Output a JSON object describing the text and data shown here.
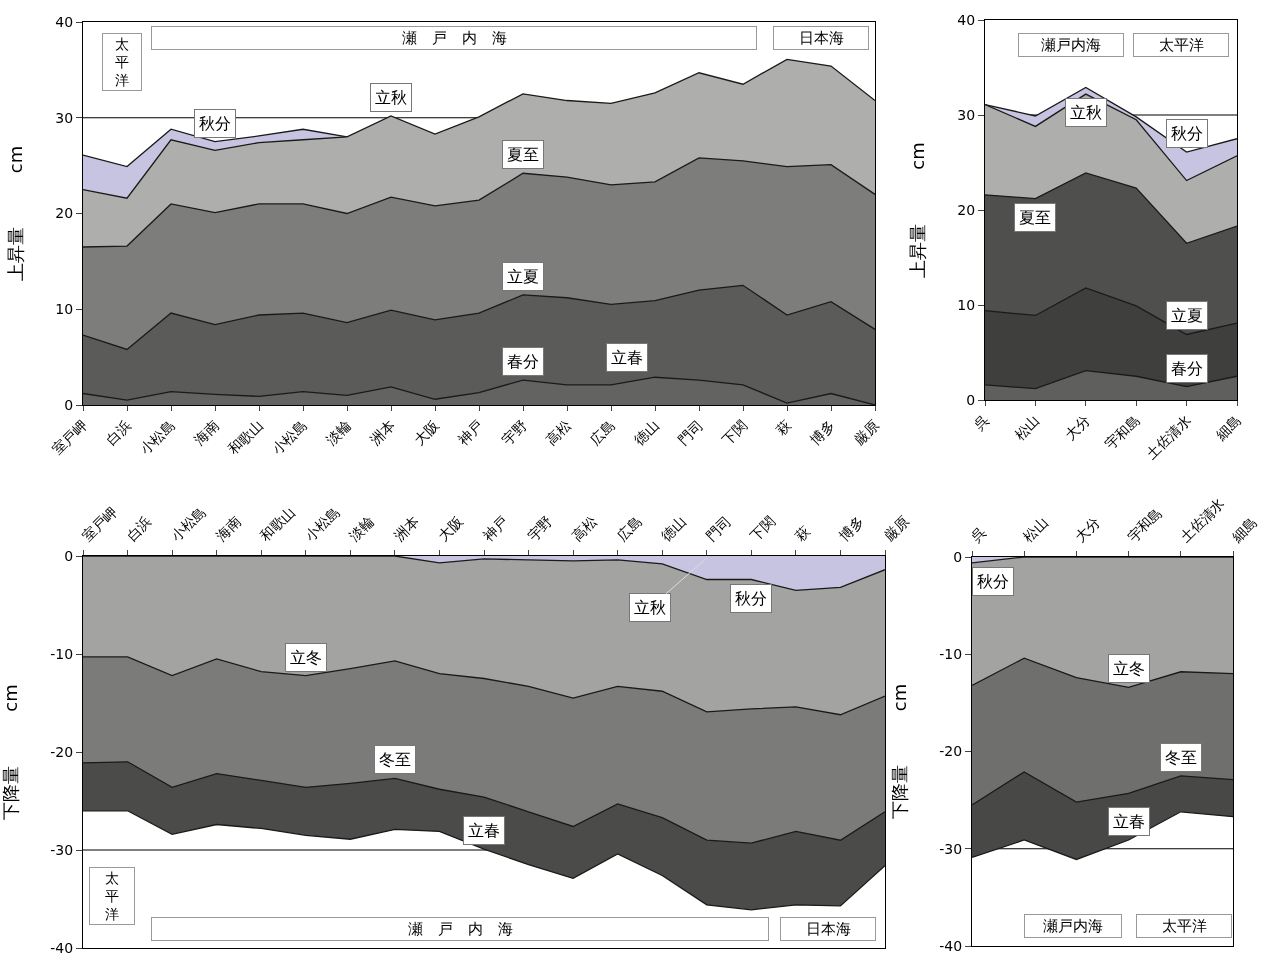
{
  "chart_data": [
    {
      "type": "area",
      "ylabel": "上昇量　　　cm",
      "ylim": [
        0,
        40
      ],
      "yticks": [
        0,
        10,
        20,
        30,
        40
      ],
      "categories": [
        "室戸岬",
        "白浜",
        "小松島",
        "海南",
        "和歌山",
        "小松島",
        "淡輪",
        "洲本",
        "大阪",
        "神戸",
        "宇野",
        "高松",
        "広島",
        "徳山",
        "門司",
        "下関",
        "萩",
        "博多",
        "厳原"
      ],
      "series": [
        {
          "name": "秋分",
          "color": "#c6c4e0",
          "values": [
            26.1,
            24.9,
            28.8,
            27.5,
            28.1,
            28.8,
            28.0,
            null,
            null,
            null,
            null,
            null,
            null,
            null,
            null,
            null,
            null,
            null,
            null
          ]
        },
        {
          "name": "立秋",
          "color": "#aeafad",
          "values": [
            22.5,
            21.6,
            27.7,
            26.6,
            27.4,
            27.7,
            28.0,
            30.2,
            28.3,
            30.1,
            32.5,
            31.8,
            31.5,
            32.6,
            34.7,
            33.5,
            36.1,
            35.4,
            31.8
          ]
        },
        {
          "name": "夏至",
          "color": "#7d7e7c",
          "values": [
            16.5,
            16.6,
            21.0,
            20.1,
            21.0,
            21.0,
            20.0,
            21.7,
            20.8,
            21.4,
            24.2,
            23.8,
            23.0,
            23.3,
            25.8,
            25.5,
            24.9,
            25.1,
            22.0
          ]
        },
        {
          "name": "立夏",
          "color": "#5b5c5a",
          "values": [
            7.3,
            5.8,
            9.6,
            8.4,
            9.4,
            9.6,
            8.6,
            9.9,
            8.9,
            9.6,
            11.5,
            11.2,
            10.5,
            10.9,
            12.0,
            12.5,
            9.4,
            10.8,
            7.9
          ]
        },
        {
          "name": "春分",
          "color": "#636462",
          "values": [
            1.2,
            0.5,
            1.4,
            1.1,
            0.9,
            1.4,
            1.0,
            1.9,
            0.6,
            1.3,
            2.6,
            2.1,
            2.1,
            2.9,
            2.6,
            2.1,
            0.2,
            1.2,
            0
          ]
        }
      ],
      "ref_lines": [
        {
          "axis": "y",
          "value": 30,
          "color": "#000000"
        }
      ],
      "annotations": [
        "太平洋",
        "瀬　戸　内　海",
        "日本海",
        "立春"
      ]
    },
    {
      "type": "area",
      "ylabel": "上昇量　　　cm",
      "ylim": [
        0,
        40
      ],
      "yticks": [
        0,
        10,
        20,
        30,
        40
      ],
      "categories": [
        "呉",
        "松山",
        "大分",
        "宇和島",
        "土佐清水",
        "細島"
      ],
      "series": [
        {
          "name": "秋分",
          "color": "#c6c4e0",
          "values": [
            31.1,
            29.9,
            32.9,
            29.8,
            26.1,
            27.5
          ]
        },
        {
          "name": "立秋",
          "color": "#aeafad",
          "values": [
            31.1,
            28.8,
            32.2,
            29.5,
            23.1,
            25.7
          ]
        },
        {
          "name": "夏至",
          "color": "#4f504e",
          "values": [
            21.6,
            21.2,
            23.9,
            22.3,
            16.5,
            18.3
          ]
        },
        {
          "name": "立夏",
          "color": "#3f403e",
          "values": [
            9.4,
            8.9,
            11.8,
            9.9,
            6.9,
            8.1
          ]
        },
        {
          "name": "春分",
          "color": "#5f605e",
          "values": [
            1.6,
            1.2,
            3.1,
            2.5,
            1.4,
            2.5
          ]
        }
      ],
      "ref_lines": [
        {
          "axis": "y",
          "value": 30,
          "color": "#000000"
        }
      ],
      "annotations": [
        "瀬戸内海",
        "太平洋"
      ]
    },
    {
      "type": "area",
      "ylabel": "下降量　　　cm",
      "ylim": [
        -40,
        0
      ],
      "yticks": [
        -40,
        -30,
        -20,
        -10,
        0
      ],
      "categories": [
        "室戸岬",
        "白浜",
        "小松島",
        "海南",
        "和歌山",
        "小松島",
        "淡輪",
        "洲本",
        "大阪",
        "神戸",
        "宇野",
        "高松",
        "広島",
        "徳山",
        "門司",
        "下関",
        "萩",
        "博多",
        "厳原"
      ],
      "series": [
        {
          "name": "立春",
          "color": "#4b4c4a",
          "values": [
            -26.0,
            -26.0,
            -28.4,
            -27.4,
            -27.8,
            -28.5,
            -28.9,
            -27.9,
            -28.1,
            -29.9,
            -31.5,
            -32.9,
            -30.4,
            -32.6,
            -35.6,
            -36.1,
            -35.6,
            -35.7,
            -31.6
          ]
        },
        {
          "name": "冬至",
          "color": "#7b7c7a",
          "values": [
            -21.1,
            -21.0,
            -23.6,
            -22.2,
            -22.9,
            -23.6,
            -23.2,
            -22.7,
            -23.8,
            -24.6,
            -26.1,
            -27.6,
            -25.3,
            -26.7,
            -29.0,
            -29.3,
            -28.1,
            -29.0,
            -26.1
          ]
        },
        {
          "name": "立冬",
          "color": "#a3a4a2",
          "values": [
            -10.3,
            -10.3,
            -12.2,
            -10.5,
            -11.8,
            -12.2,
            -11.5,
            -10.7,
            -12.0,
            -12.5,
            -13.3,
            -14.5,
            -13.3,
            -13.8,
            -15.9,
            -15.6,
            -15.4,
            -16.2,
            -14.3
          ]
        },
        {
          "name": "秋分",
          "color": "#c6c4e0",
          "values": [
            0,
            0,
            0,
            0,
            0,
            0,
            0,
            0,
            -0.7,
            -0.3,
            -0.4,
            -0.5,
            -0.4,
            -0.8,
            -2.4,
            -2.4,
            -3.5,
            -3.2,
            -1.4
          ]
        }
      ],
      "ref_lines": [
        {
          "axis": "y",
          "value": -30,
          "color": "#000000"
        }
      ],
      "annotations": [
        "太平洋",
        "瀬　戸　内　海",
        "日本海",
        {
          "text": "立秋",
          "x": "門司",
          "y": -0.2
        }
      ]
    },
    {
      "type": "area",
      "ylabel": "下降量　　　cm",
      "ylim": [
        -40,
        0
      ],
      "yticks": [
        -40,
        -30,
        -20,
        -10,
        0
      ],
      "categories": [
        "呉",
        "松山",
        "大分",
        "宇和島",
        "土佐清水",
        "細島"
      ],
      "series": [
        {
          "name": "立春",
          "color": "#484947",
          "values": [
            -30.9,
            -29.1,
            -31.1,
            -29.1,
            -26.2,
            -26.7
          ]
        },
        {
          "name": "冬至",
          "color": "#6f706e",
          "values": [
            -25.5,
            -22.1,
            -25.2,
            -24.3,
            -22.5,
            -22.9
          ]
        },
        {
          "name": "立冬",
          "color": "#a3a4a2",
          "values": [
            -13.2,
            -10.4,
            -12.4,
            -13.4,
            -11.8,
            -12.0
          ]
        },
        {
          "name": "秋分",
          "color": "#c6c4e0",
          "values": [
            -0.6,
            0,
            0,
            0,
            0,
            0
          ]
        }
      ],
      "ref_lines": [
        {
          "axis": "y",
          "value": -30,
          "color": "#000000"
        }
      ],
      "annotations": [
        "瀬戸内海",
        "太平洋"
      ]
    }
  ]
}
